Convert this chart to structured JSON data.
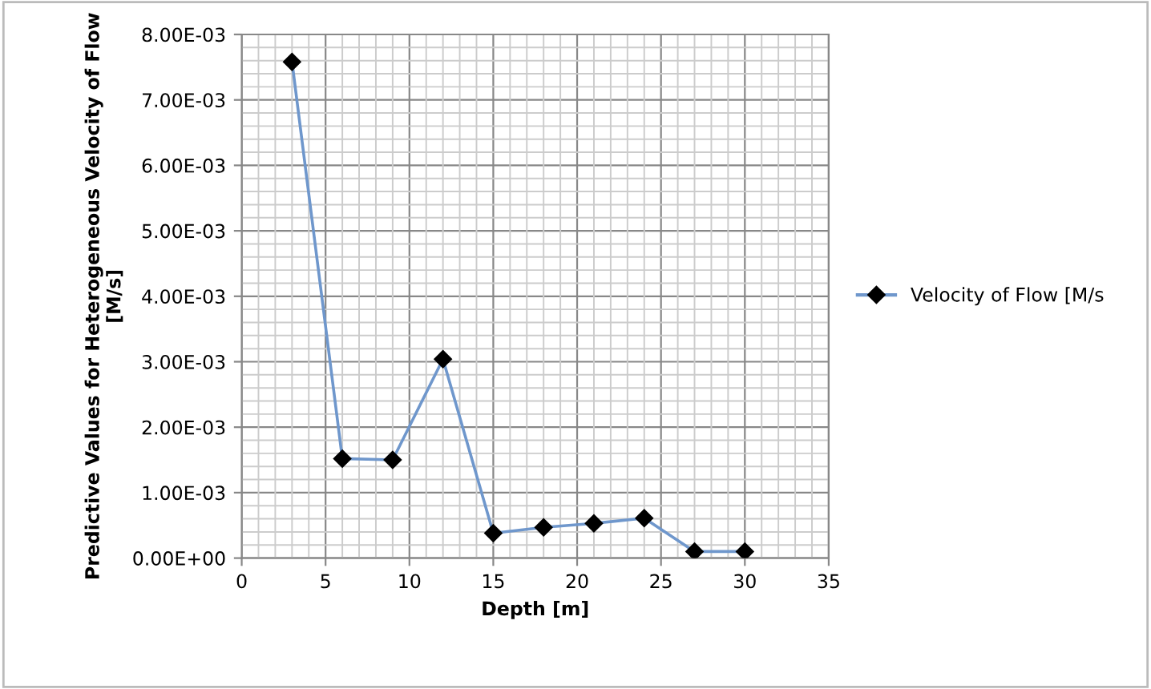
{
  "chart_data": {
    "type": "line",
    "xlabel": "Depth [m]",
    "ylabel": "Predictive Values for Heterogeneous Velocity of Flow [M/s]",
    "x": [
      3,
      6,
      9,
      12,
      15,
      18,
      21,
      24,
      27,
      30
    ],
    "series": [
      {
        "name": "Velocity of Flow [M/s",
        "color": "#6f97cc",
        "values": [
          0.00758,
          0.00152,
          0.0015,
          0.00304,
          0.00038,
          0.00047,
          0.00053,
          0.00061,
          0.0001,
          0.0001
        ]
      }
    ],
    "xlim": [
      0,
      35
    ],
    "xticks": [
      0,
      5,
      10,
      15,
      20,
      25,
      30,
      35
    ],
    "ylim": [
      0,
      0.008
    ],
    "yticks": [
      {
        "value": 0,
        "label": "0.00E+00"
      },
      {
        "value": 0.001,
        "label": "1.00E-03"
      },
      {
        "value": 0.002,
        "label": "2.00E-03"
      },
      {
        "value": 0.003,
        "label": "3.00E-03"
      },
      {
        "value": 0.004,
        "label": "4.00E-03"
      },
      {
        "value": 0.005,
        "label": "5.00E-03"
      },
      {
        "value": 0.006,
        "label": "6.00E-03"
      },
      {
        "value": 0.007,
        "label": "7.00E-03"
      },
      {
        "value": 0.008,
        "label": "8.00E-03"
      }
    ],
    "grid": true,
    "legend": "right",
    "marker": "diamond",
    "line_style": "solid"
  }
}
